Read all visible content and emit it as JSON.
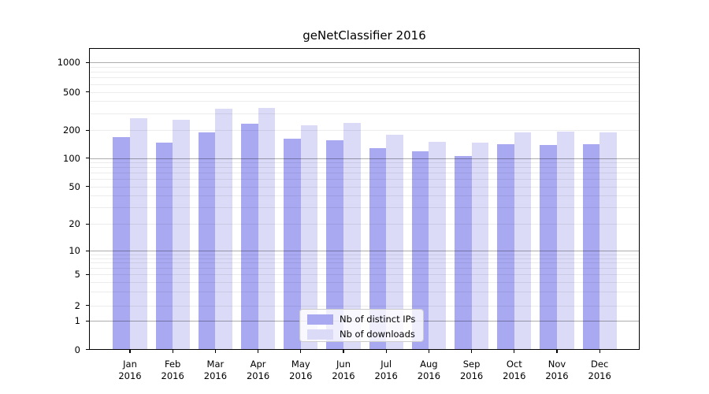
{
  "title": "geNetClassifier 2016",
  "chart_data": {
    "type": "bar",
    "title": "geNetClassifier 2016",
    "categories": [
      "Jan 2016",
      "Feb 2016",
      "Mar 2016",
      "Apr 2016",
      "May 2016",
      "Jun 2016",
      "Jul 2016",
      "Aug 2016",
      "Sep 2016",
      "Oct 2016",
      "Nov 2016",
      "Dec 2016"
    ],
    "series": [
      {
        "name": "Nb of distinct IPs",
        "color": "#a9a9f2",
        "values": [
          167,
          147,
          189,
          234,
          162,
          155,
          128,
          119,
          104,
          141,
          137,
          141
        ]
      },
      {
        "name": "Nb of downloads",
        "color": "#dbdbf8",
        "values": [
          268,
          258,
          335,
          338,
          226,
          235,
          178,
          150,
          145,
          190,
          191,
          188
        ]
      }
    ],
    "xlabel": "",
    "ylabel": "",
    "yscale": "log",
    "y_tick_labels": [
      "0",
      "1",
      "2",
      "5",
      "10",
      "20",
      "50",
      "100",
      "200",
      "500",
      "1000"
    ],
    "y_tick_values": [
      0,
      1,
      2,
      5,
      10,
      20,
      50,
      100,
      200,
      500,
      1000
    ],
    "ylim": [
      0,
      1400
    ],
    "grid": "horizontal major and minor log gridlines",
    "legend_position": "lower center inside plot"
  },
  "colors": {
    "bar_distinct_ips": "#a9a9f2",
    "bar_downloads": "#dbdbf8",
    "grid_major": "#b3b3b3",
    "grid_minor": "#ececec",
    "axis": "#000000",
    "legend_border": "#cccccc",
    "background": "#ffffff"
  }
}
